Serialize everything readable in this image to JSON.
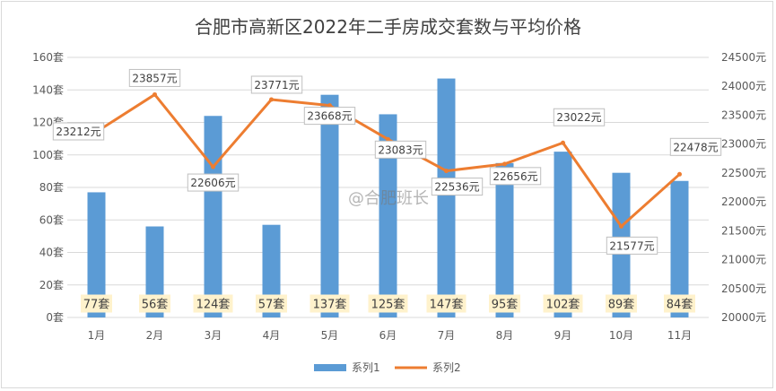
{
  "title": "合肥市高新区2022年二手房成交套数与平均价格",
  "watermark": "@合肥班长",
  "colors": {
    "bar": "#5b9bd5",
    "line": "#ed7d31",
    "bar_label_bg": "#fff2cc",
    "grid": "#d9d9d9"
  },
  "chart_data": {
    "type": "bar",
    "title": "合肥市高新区2022年二手房成交套数与平均价格",
    "categories": [
      "1月",
      "2月",
      "3月",
      "4月",
      "5月",
      "6月",
      "7月",
      "8月",
      "9月",
      "10月",
      "11月"
    ],
    "series": [
      {
        "name": "系列1",
        "type": "bar",
        "axis": "left",
        "values": [
          77,
          56,
          124,
          57,
          137,
          125,
          147,
          95,
          102,
          89,
          84
        ],
        "labels": [
          "77套",
          "56套",
          "124套",
          "57套",
          "137套",
          "125套",
          "147套",
          "95套",
          "102套",
          "89套",
          "84套"
        ]
      },
      {
        "name": "系列2",
        "type": "line",
        "axis": "right",
        "values": [
          23212,
          23857,
          22606,
          23771,
          23668,
          23083,
          22536,
          22656,
          23022,
          21577,
          22478
        ],
        "labels": [
          "23212元",
          "23857元",
          "22606元",
          "23771元",
          "23668元",
          "23083元",
          "22536元",
          "22656元",
          "23022元",
          "21577元",
          "22478元"
        ]
      }
    ],
    "left_axis": {
      "ylim": [
        0,
        160
      ],
      "ticks": [
        0,
        20,
        40,
        60,
        80,
        100,
        120,
        140,
        160
      ],
      "tick_labels": [
        "0套",
        "20套",
        "40套",
        "60套",
        "80套",
        "100套",
        "120套",
        "140套",
        "160套"
      ]
    },
    "right_axis": {
      "ylim": [
        20000,
        24500
      ],
      "ticks": [
        20000,
        20500,
        21000,
        21500,
        22000,
        22500,
        23000,
        23500,
        24000,
        24500
      ],
      "tick_labels": [
        "20000元",
        "20500元",
        "21000元",
        "21500元",
        "22000元",
        "22500元",
        "23000元",
        "23500元",
        "24000元",
        "24500元"
      ]
    },
    "grid": true,
    "legend": "bottom"
  }
}
